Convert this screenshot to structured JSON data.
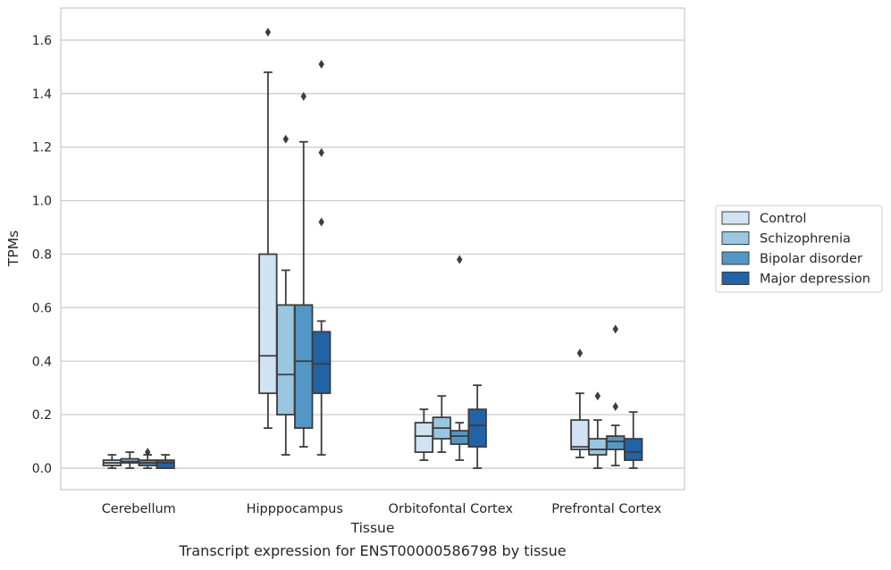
{
  "chart_data": {
    "type": "boxplot",
    "caption": "Transcript expression for ENST00000586798 by tissue",
    "xlabel": "Tissue",
    "ylabel": "TPMs",
    "ylim": [
      -0.08,
      1.72
    ],
    "yticks": [
      0.0,
      0.2,
      0.4,
      0.6,
      0.8,
      1.0,
      1.2,
      1.4,
      1.6
    ],
    "ytick_labels": [
      "0.0",
      "0.2",
      "0.4",
      "0.6",
      "0.8",
      "1.0",
      "1.2",
      "1.4",
      "1.6"
    ],
    "grid": "horizontal",
    "legend_position": "right",
    "categories": [
      "Cerebellum",
      "Hipppocampus",
      "Orbitofontal Cortex",
      "Prefrontal Cortex"
    ],
    "series": [
      {
        "name": "Control",
        "color": "#d1e2f2",
        "boxes": [
          {
            "whislo": 0.0,
            "q1": 0.01,
            "med": 0.02,
            "q3": 0.03,
            "whishi": 0.05,
            "fliers": []
          },
          {
            "whislo": 0.15,
            "q1": 0.28,
            "med": 0.42,
            "q3": 0.8,
            "whishi": 1.48,
            "fliers": [
              1.63
            ]
          },
          {
            "whislo": 0.03,
            "q1": 0.06,
            "med": 0.12,
            "q3": 0.17,
            "whishi": 0.22,
            "fliers": []
          },
          {
            "whislo": 0.04,
            "q1": 0.07,
            "med": 0.08,
            "q3": 0.18,
            "whishi": 0.28,
            "fliers": [
              0.43
            ]
          }
        ]
      },
      {
        "name": "Schizophrenia",
        "color": "#9ac6df",
        "boxes": [
          {
            "whislo": 0.0,
            "q1": 0.02,
            "med": 0.025,
            "q3": 0.035,
            "whishi": 0.06,
            "fliers": []
          },
          {
            "whislo": 0.05,
            "q1": 0.2,
            "med": 0.35,
            "q3": 0.61,
            "whishi": 0.74,
            "fliers": [
              1.23
            ]
          },
          {
            "whislo": 0.06,
            "q1": 0.11,
            "med": 0.15,
            "q3": 0.19,
            "whishi": 0.27,
            "fliers": []
          },
          {
            "whislo": 0.0,
            "q1": 0.05,
            "med": 0.07,
            "q3": 0.11,
            "whishi": 0.18,
            "fliers": [
              0.27
            ]
          }
        ]
      },
      {
        "name": "Bipolar disorder",
        "color": "#5297c6",
        "boxes": [
          {
            "whislo": 0.0,
            "q1": 0.01,
            "med": 0.02,
            "q3": 0.03,
            "whishi": 0.05,
            "fliers": [
              0.06
            ]
          },
          {
            "whislo": 0.08,
            "q1": 0.15,
            "med": 0.4,
            "q3": 0.61,
            "whishi": 1.22,
            "fliers": [
              1.39
            ]
          },
          {
            "whislo": 0.03,
            "q1": 0.09,
            "med": 0.12,
            "q3": 0.14,
            "whishi": 0.17,
            "fliers": [
              0.78
            ]
          },
          {
            "whislo": 0.01,
            "q1": 0.07,
            "med": 0.1,
            "q3": 0.12,
            "whishi": 0.16,
            "fliers": [
              0.23,
              0.52
            ]
          }
        ]
      },
      {
        "name": "Major depression",
        "color": "#2163a6",
        "boxes": [
          {
            "whislo": 0.0,
            "q1": 0.0,
            "med": 0.02,
            "q3": 0.03,
            "whishi": 0.05,
            "fliers": []
          },
          {
            "whislo": 0.05,
            "q1": 0.28,
            "med": 0.39,
            "q3": 0.51,
            "whishi": 0.55,
            "fliers": [
              0.92,
              1.18,
              1.51
            ]
          },
          {
            "whislo": 0.0,
            "q1": 0.08,
            "med": 0.16,
            "q3": 0.22,
            "whishi": 0.31,
            "fliers": []
          },
          {
            "whislo": 0.0,
            "q1": 0.03,
            "med": 0.06,
            "q3": 0.11,
            "whishi": 0.21,
            "fliers": []
          }
        ]
      }
    ]
  }
}
